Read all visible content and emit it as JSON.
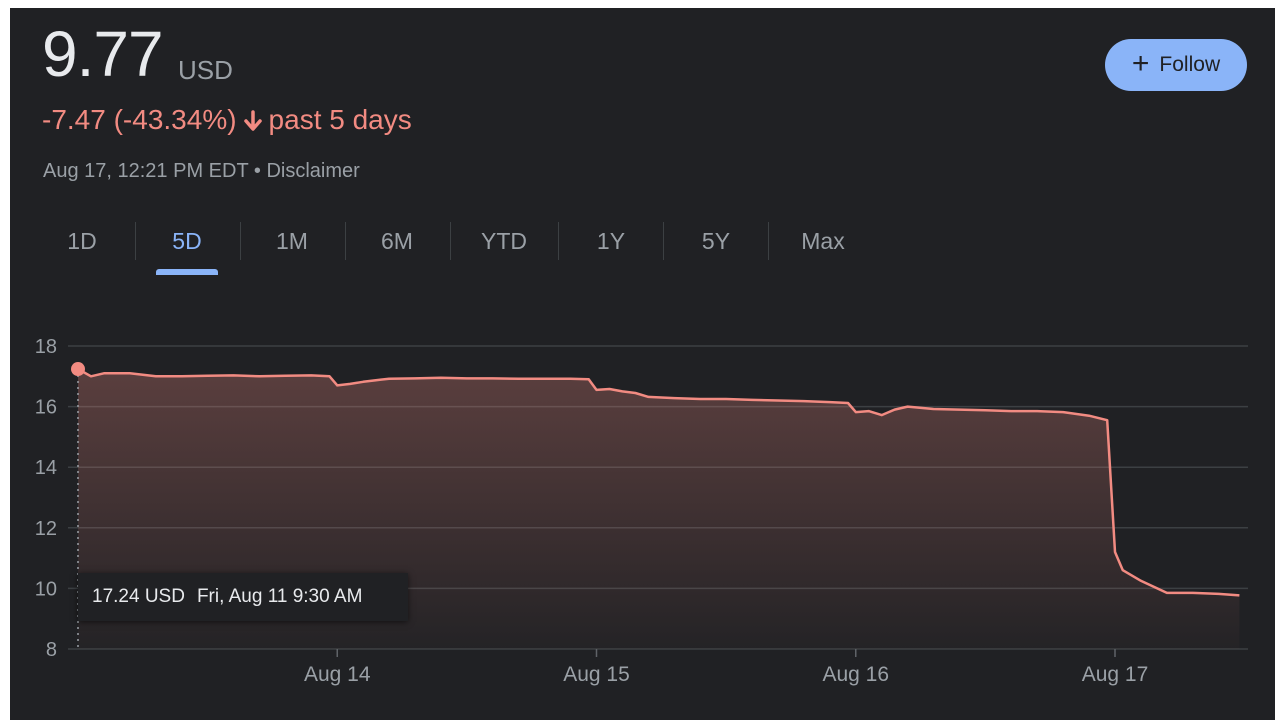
{
  "header": {
    "price": "9.77",
    "currency": "USD",
    "change_text": "-7.47 (-43.34%)",
    "change_period": "past 5 days",
    "timestamp": "Aug 17, 12:21 PM EDT",
    "separator": "•",
    "disclaimer": "Disclaimer",
    "follow_label": "Follow"
  },
  "tabs": [
    {
      "label": "1D",
      "active": false
    },
    {
      "label": "5D",
      "active": true
    },
    {
      "label": "1M",
      "active": false
    },
    {
      "label": "6M",
      "active": false
    },
    {
      "label": "YTD",
      "active": false
    },
    {
      "label": "1Y",
      "active": false
    },
    {
      "label": "5Y",
      "active": false
    },
    {
      "label": "Max",
      "active": false
    }
  ],
  "tooltip": {
    "price": "17.24 USD",
    "time": "Fri, Aug 11 9:30 AM"
  },
  "colors": {
    "background": "#202124",
    "line": "#f28b82",
    "accent": "#8ab4f8",
    "text_primary": "#e8eaed",
    "text_secondary": "#9aa0a6",
    "gridline": "#3c4043"
  },
  "chart_data": {
    "type": "area",
    "ylim": [
      8,
      18
    ],
    "y_ticks": [
      8,
      10,
      12,
      14,
      16,
      18
    ],
    "x_tick_labels": [
      {
        "label": "Aug 14",
        "session": 1
      },
      {
        "label": "Aug 15",
        "session": 2
      },
      {
        "label": "Aug 16",
        "session": 3
      },
      {
        "label": "Aug 17",
        "session": 4
      }
    ],
    "session_count": 5,
    "grid": true,
    "series": [
      {
        "x": [
          0,
          0.05,
          0.1,
          0.2,
          0.3,
          0.4,
          0.5,
          0.6,
          0.7,
          0.8,
          0.9,
          0.97,
          1.0,
          1.05,
          1.1,
          1.2,
          1.3,
          1.4,
          1.5,
          1.6,
          1.7,
          1.8,
          1.9,
          1.97,
          2.0,
          2.05,
          2.1,
          2.15,
          2.2,
          2.3,
          2.4,
          2.5,
          2.6,
          2.7,
          2.8,
          2.9,
          2.97,
          3.0,
          3.05,
          3.1,
          3.15,
          3.2,
          3.3,
          3.4,
          3.5,
          3.6,
          3.7,
          3.8,
          3.9,
          3.97,
          4.0,
          4.03,
          4.1,
          4.2,
          4.3,
          4.4,
          4.48
        ],
        "values": [
          17.24,
          17.0,
          17.1,
          17.1,
          17.0,
          17.0,
          17.02,
          17.03,
          17.0,
          17.02,
          17.03,
          17.0,
          16.7,
          16.75,
          16.82,
          16.92,
          16.93,
          16.95,
          16.93,
          16.93,
          16.92,
          16.92,
          16.92,
          16.9,
          16.55,
          16.58,
          16.5,
          16.45,
          16.32,
          16.28,
          16.25,
          16.25,
          16.22,
          16.2,
          16.18,
          16.15,
          16.12,
          15.82,
          15.85,
          15.72,
          15.9,
          16.0,
          15.92,
          15.9,
          15.88,
          15.85,
          15.85,
          15.82,
          15.7,
          15.55,
          11.2,
          10.6,
          10.25,
          9.85,
          9.85,
          9.82,
          9.77
        ]
      }
    ]
  }
}
